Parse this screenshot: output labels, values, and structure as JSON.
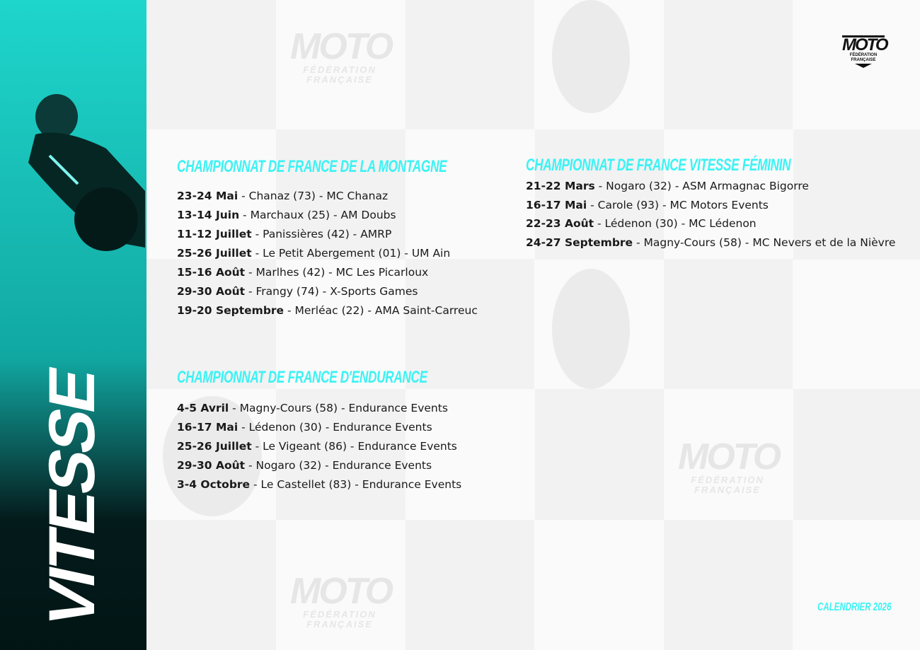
{
  "side": {
    "title": "VITESSE"
  },
  "logo": {
    "brand": "MOTO",
    "line1": "FÉDÉRATION",
    "line2": "FRANÇAISE"
  },
  "colors": {
    "accent": "#3cf2f4",
    "sidebar_top": "#1ed6cc",
    "sidebar_bottom": "#021515"
  },
  "sections": {
    "montagne": {
      "title": "CHAMPIONNAT DE FRANCE DE LA MONTAGNE",
      "events": [
        {
          "date": "23-24 Mai",
          "detail": " - Chanaz (73) - MC Chanaz"
        },
        {
          "date": "13-14 Juin",
          "detail": " - Marchaux (25) - AM Doubs"
        },
        {
          "date": "11-12 Juillet",
          "detail": " - Panissières (42) - AMRP"
        },
        {
          "date": "25-26 Juillet",
          "detail": " - Le Petit Abergement (01) - UM Ain"
        },
        {
          "date": "15-16 Août",
          "detail": " - Marlhes (42) - MC Les Picarloux"
        },
        {
          "date": "29-30 Août",
          "detail": " - Frangy (74) - X-Sports Games"
        },
        {
          "date": "19-20 Septembre",
          "detail": " - Merléac (22) - AMA Saint-Carreuc"
        }
      ]
    },
    "endurance": {
      "title": "CHAMPIONNAT DE FRANCE D'ENDURANCE",
      "events": [
        {
          "date": "4-5 Avril",
          "detail": " - Magny-Cours (58) - Endurance Events"
        },
        {
          "date": "16-17 Mai",
          "detail": " - Lédenon (30) - Endurance Events"
        },
        {
          "date": "25-26 Juillet",
          "detail": " - Le Vigeant (86) - Endurance Events"
        },
        {
          "date": "29-30 Août",
          "detail": " - Nogaro (32) - Endurance Events"
        },
        {
          "date": "3-4 Octobre",
          "detail": " - Le Castellet (83) - Endurance Events"
        }
      ]
    },
    "feminin": {
      "title": "CHAMPIONNAT DE FRANCE VITESSE FÉMININ",
      "events": [
        {
          "date": "21-22 Mars",
          "detail": " - Nogaro (32) - ASM Armagnac Bigorre"
        },
        {
          "date": "16-17 Mai",
          "detail": " - Carole (93) - MC Motors Events"
        },
        {
          "date": "22-23 Août",
          "detail": " - Lédenon (30) - MC Lédenon"
        },
        {
          "date": "24-27 Septembre",
          "detail": " - Magny-Cours (58) - MC Nevers et de la Nièvre"
        }
      ]
    }
  },
  "footer": {
    "label": "CALENDRIER 2026"
  }
}
